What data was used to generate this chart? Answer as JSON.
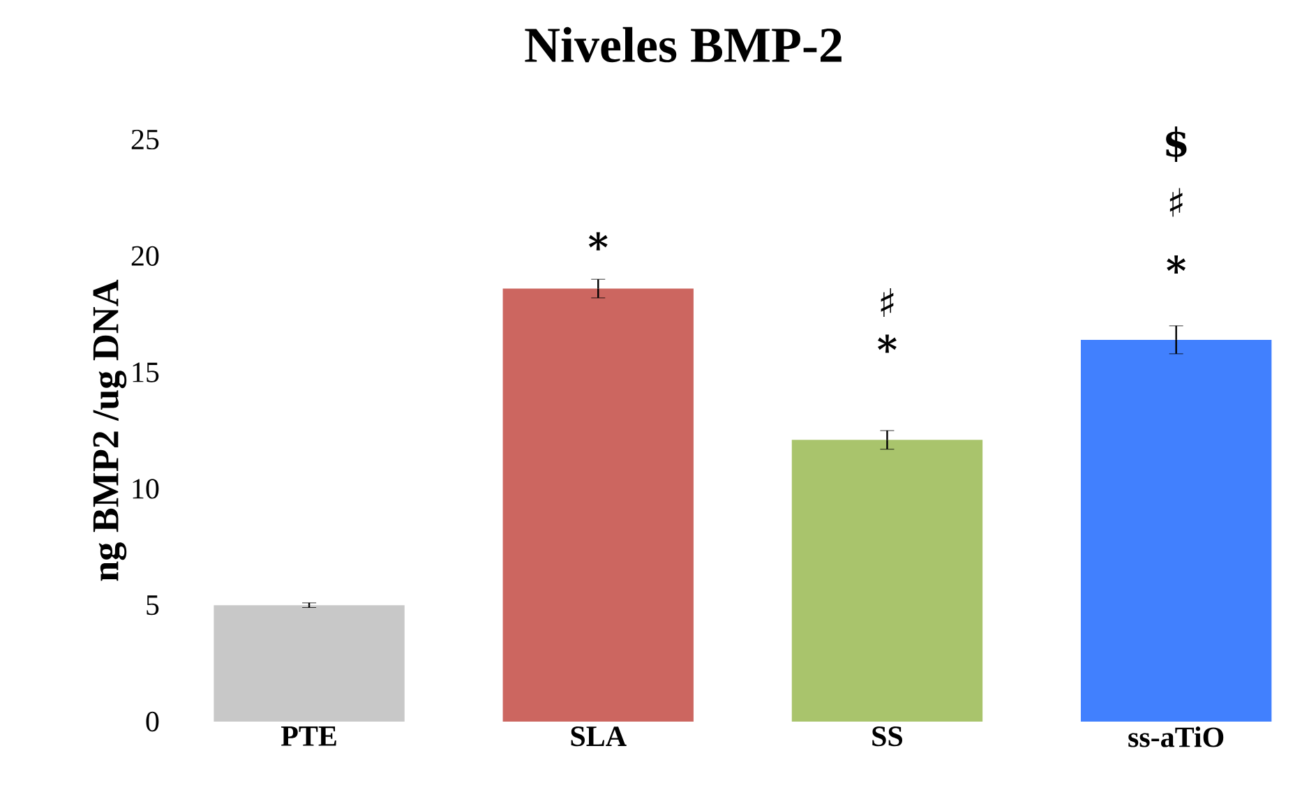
{
  "chart_data": {
    "type": "bar",
    "title": "Niveles BMP-2",
    "ylabel": "ng BMP2  /ug DNA",
    "categories": [
      "PTE",
      "SLA",
      "SS",
      "ss-aTiO"
    ],
    "values": [
      5.0,
      18.6,
      12.1,
      16.4
    ],
    "colors": [
      "#c8c8c8",
      "#cc6660",
      "#a9c46c",
      "#4180fe"
    ],
    "errors": [
      0.1,
      0.4,
      0.4,
      0.6
    ],
    "ylim": [
      0,
      25
    ],
    "yticks": [
      0,
      5,
      10,
      15,
      20,
      25
    ],
    "grid": false,
    "annotations": [
      "*",
      "*",
      "♯",
      "*",
      "♯",
      "$"
    ]
  }
}
